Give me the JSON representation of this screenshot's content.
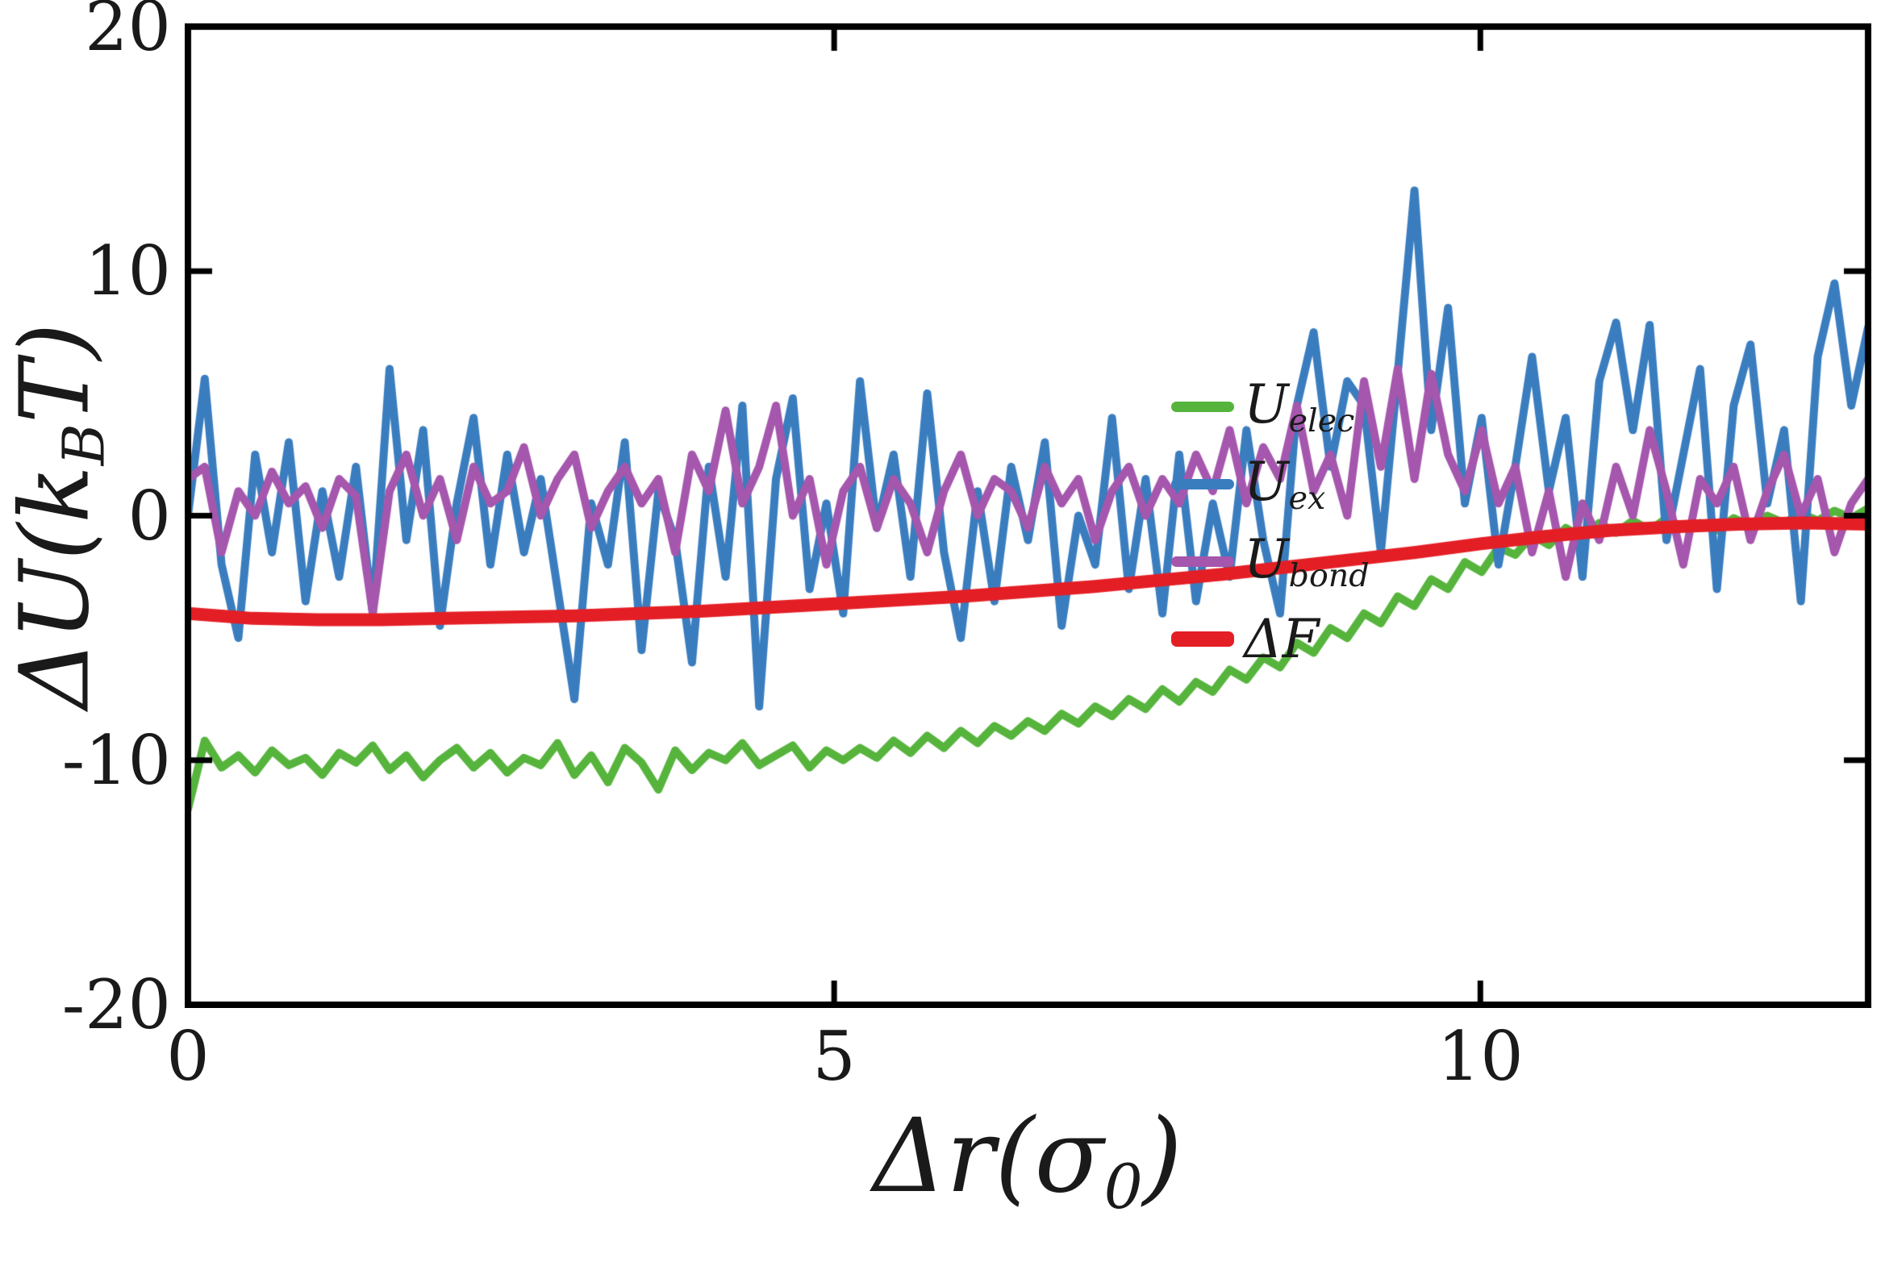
{
  "figure": {
    "background": "#ffffff",
    "axis_color": "#000000"
  },
  "chart_data": {
    "type": "line",
    "title": "",
    "xlabel": {
      "pre": "Δr(σ",
      "sub": "0",
      "post": ")"
    },
    "ylabel": {
      "pre": "ΔU(k",
      "sub": "B",
      "post": "T)"
    },
    "xlim": [
      0,
      13
    ],
    "ylim": [
      -20,
      20
    ],
    "xticks": [
      0,
      5,
      10
    ],
    "xtick_labels": [
      "0",
      "5",
      "10"
    ],
    "yticks": [
      -20,
      -10,
      0,
      10,
      20
    ],
    "ytick_labels": [
      "-20",
      "-10",
      "0",
      "10",
      "20"
    ],
    "grid": false,
    "legend_position": "inside-right",
    "legend_frame": false,
    "series": [
      {
        "name_main": "U",
        "name_sub": "elec",
        "color": "#56b43c",
        "width": 10,
        "x0": 0,
        "dx": 0.13,
        "values": [
          -12.0,
          -9.2,
          -10.3,
          -9.8,
          -10.5,
          -9.6,
          -10.2,
          -9.9,
          -10.6,
          -9.7,
          -10.1,
          -9.4,
          -10.4,
          -9.8,
          -10.7,
          -10.0,
          -9.5,
          -10.3,
          -9.7,
          -10.5,
          -9.9,
          -10.2,
          -9.3,
          -10.6,
          -9.8,
          -10.9,
          -9.5,
          -10.1,
          -11.2,
          -9.6,
          -10.4,
          -9.7,
          -10.0,
          -9.3,
          -10.2,
          -9.8,
          -9.4,
          -10.3,
          -9.6,
          -10.0,
          -9.5,
          -9.9,
          -9.2,
          -9.7,
          -9.0,
          -9.5,
          -8.8,
          -9.3,
          -8.6,
          -9.0,
          -8.4,
          -8.8,
          -8.1,
          -8.5,
          -7.8,
          -8.2,
          -7.5,
          -7.9,
          -7.1,
          -7.6,
          -6.8,
          -7.2,
          -6.3,
          -6.7,
          -5.8,
          -6.2,
          -5.2,
          -5.6,
          -4.6,
          -5.0,
          -4.0,
          -4.4,
          -3.3,
          -3.7,
          -2.6,
          -3.0,
          -1.9,
          -2.3,
          -1.3,
          -1.6,
          -0.8,
          -1.2,
          -0.5,
          -0.9,
          -0.3,
          -0.7,
          -0.2,
          -0.6,
          -0.1,
          -0.5,
          -0.3,
          -0.6,
          -0.1,
          -0.4,
          0.0,
          -0.3,
          0.1,
          -0.2,
          0.2,
          -0.1,
          0.3
        ]
      },
      {
        "name_main": "U",
        "name_sub": "ex",
        "color": "#3a7dbf",
        "width": 10,
        "x0": 0,
        "dx": 0.13,
        "values": [
          0.0,
          5.6,
          -2.0,
          -5.0,
          2.5,
          -1.5,
          3.0,
          -3.5,
          1.0,
          -2.5,
          2.0,
          -4.0,
          6.0,
          -1.0,
          3.5,
          -4.5,
          0.5,
          4.0,
          -2.0,
          2.5,
          -1.5,
          1.5,
          -3.0,
          -7.5,
          0.5,
          -2.0,
          3.0,
          -5.5,
          1.0,
          -1.0,
          -6.0,
          2.0,
          -2.5,
          4.5,
          -7.8,
          1.5,
          4.8,
          -3.0,
          0.5,
          -4.0,
          5.5,
          -0.5,
          2.5,
          -2.5,
          5.0,
          -1.5,
          -5.0,
          1.0,
          -3.5,
          2.0,
          -1.0,
          3.0,
          -4.5,
          0.0,
          -2.0,
          4.0,
          -3.0,
          1.5,
          -4.0,
          2.5,
          -3.5,
          0.5,
          -2.5,
          3.5,
          -1.0,
          -4.0,
          4.5,
          7.5,
          2.0,
          5.5,
          4.5,
          -1.5,
          5.8,
          13.3,
          3.5,
          8.5,
          0.5,
          4.0,
          -2.0,
          2.0,
          6.5,
          1.0,
          4.0,
          -2.5,
          5.5,
          7.9,
          3.5,
          7.8,
          -1.0,
          2.5,
          6.0,
          -3.0,
          4.5,
          7.0,
          0.5,
          3.5,
          -3.5,
          6.5,
          9.5,
          4.5,
          7.7
        ]
      },
      {
        "name_main": "U",
        "name_sub": "bond",
        "color": "#a556ad",
        "width": 10,
        "x0": 0,
        "dx": 0.13,
        "values": [
          1.5,
          2.0,
          -1.5,
          1.0,
          0.0,
          1.8,
          0.5,
          1.2,
          -0.5,
          1.5,
          0.8,
          -4.0,
          1.0,
          2.5,
          0.0,
          1.5,
          -1.0,
          2.0,
          0.5,
          1.0,
          2.8,
          0.0,
          1.5,
          2.5,
          -0.5,
          1.0,
          2.0,
          0.5,
          1.5,
          -1.5,
          2.5,
          1.0,
          4.3,
          0.5,
          2.0,
          4.5,
          0.0,
          1.5,
          -2.0,
          1.0,
          2.0,
          -0.5,
          1.5,
          0.5,
          -1.5,
          1.0,
          2.5,
          0.0,
          1.5,
          1.0,
          -0.5,
          2.0,
          0.5,
          1.5,
          -1.0,
          1.0,
          2.0,
          0.0,
          1.5,
          0.5,
          2.5,
          1.0,
          3.5,
          0.5,
          2.8,
          1.5,
          4.5,
          1.0,
          2.5,
          0.0,
          5.5,
          2.0,
          6.0,
          1.5,
          5.8,
          2.5,
          1.0,
          3.5,
          0.5,
          2.0,
          -1.5,
          1.0,
          -2.5,
          0.5,
          -1.0,
          2.0,
          0.0,
          3.5,
          1.0,
          -2.0,
          1.5,
          0.5,
          2.0,
          -1.0,
          1.0,
          2.5,
          0.0,
          1.5,
          -1.5,
          0.5,
          1.5
        ]
      },
      {
        "name_main": "ΔF",
        "name_sub": "",
        "color": "#e41e25",
        "width": 16,
        "x0": 0,
        "dx": 0.5,
        "values": [
          -4.0,
          -4.2,
          -4.25,
          -4.25,
          -4.2,
          -4.15,
          -4.1,
          -4.0,
          -3.9,
          -3.75,
          -3.6,
          -3.45,
          -3.3,
          -3.1,
          -2.9,
          -2.65,
          -2.4,
          -2.1,
          -1.8,
          -1.5,
          -1.15,
          -0.85,
          -0.6,
          -0.45,
          -0.35,
          -0.3,
          -0.35
        ]
      }
    ]
  }
}
